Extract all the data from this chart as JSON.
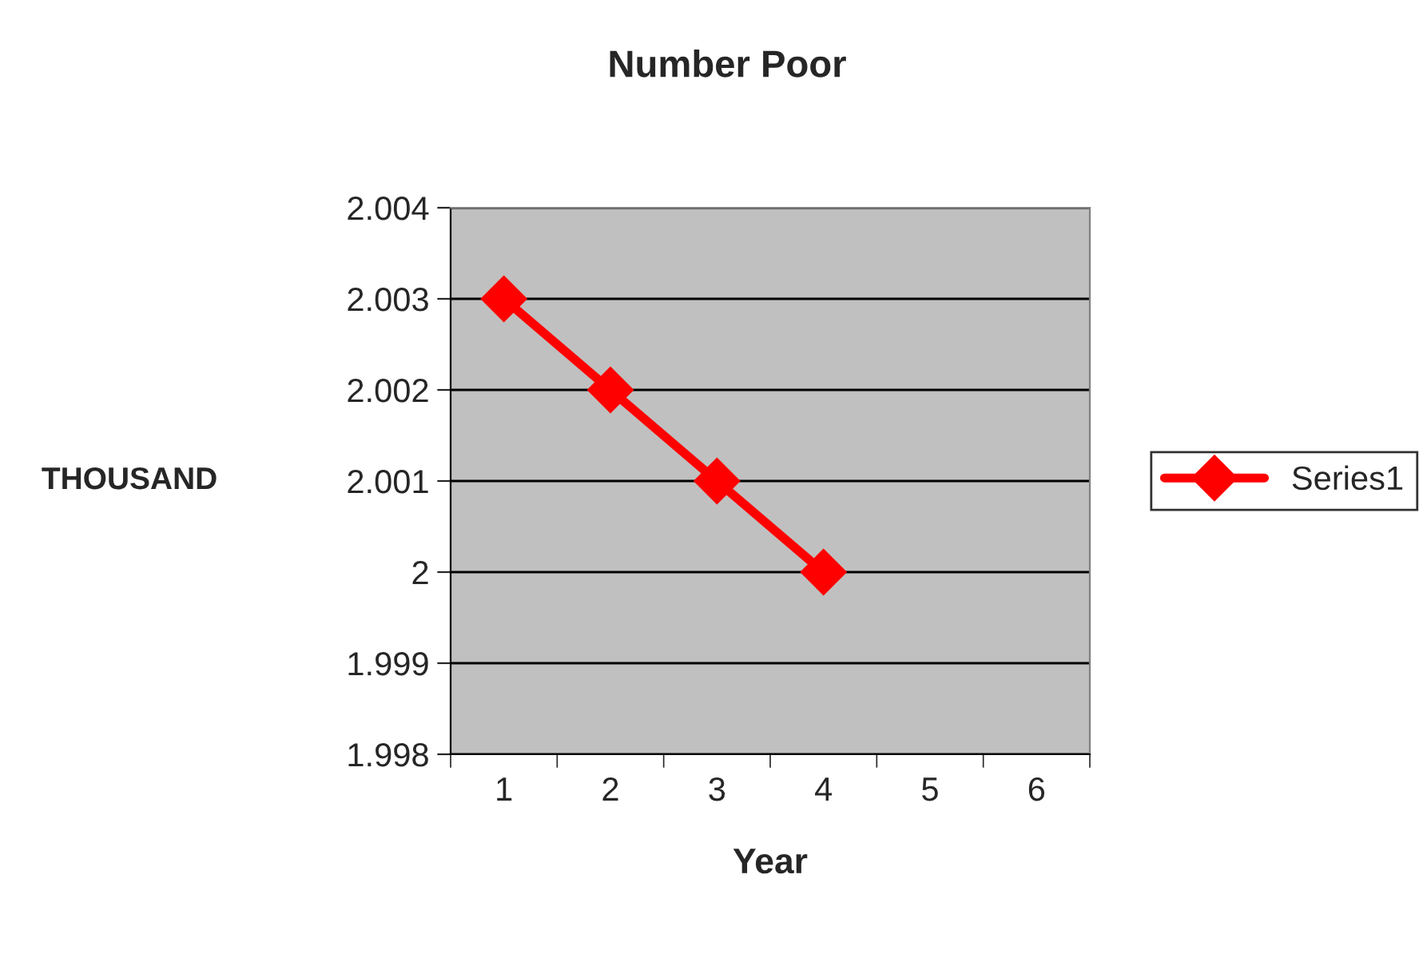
{
  "chart_data": {
    "type": "line",
    "title": "Number Poor",
    "xlabel": "Year",
    "ylabel": "THOUSAND",
    "categories": [
      "1",
      "2",
      "3",
      "4",
      "5",
      "6"
    ],
    "series": [
      {
        "name": "Series1",
        "color": "#ff0000",
        "values": [
          2.003,
          2.002,
          2.001,
          2.0,
          null,
          null
        ]
      }
    ],
    "ylim": [
      1.998,
      2.004
    ],
    "yticks": [
      1.998,
      1.999,
      {
        "value": 2.0,
        "label": "2"
      },
      2.001,
      2.002,
      2.003,
      2.004
    ],
    "grid": "y",
    "legend": "right",
    "marker": "diamond",
    "line_style": "solid"
  }
}
